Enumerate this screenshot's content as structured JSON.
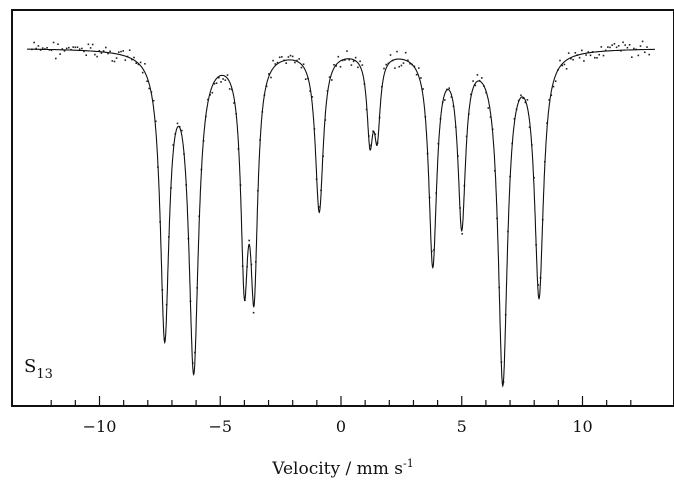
{
  "chart_data": {
    "type": "line",
    "title": "",
    "xlabel": "Velocity / mm s",
    "xlabel_superscript": "-1",
    "ylabel": "",
    "sample_label": "S",
    "sample_label_subscript": "13",
    "xlim": [
      -13,
      13
    ],
    "ylim": [
      0,
      1.0
    ],
    "grid": false,
    "x_ticks": [
      -10,
      -5,
      0,
      5,
      10
    ],
    "x_tick_labels": [
      "−10",
      "−5",
      "0",
      "5",
      "10"
    ],
    "baseline": 1.0,
    "series": [
      {
        "kind": "fit",
        "absorption_lines": [
          {
            "position": -7.3,
            "depth": 0.93,
            "width": 0.22
          },
          {
            "position": -6.1,
            "depth": 1.04,
            "width": 0.24
          },
          {
            "position": -4.0,
            "depth": 0.69,
            "width": 0.18
          },
          {
            "position": -3.6,
            "depth": 0.72,
            "width": 0.18
          },
          {
            "position": -0.9,
            "depth": 0.53,
            "width": 0.2
          },
          {
            "position": 1.2,
            "depth": 0.27,
            "width": 0.15
          },
          {
            "position": 1.5,
            "depth": 0.25,
            "width": 0.15
          },
          {
            "position": 3.8,
            "depth": 0.7,
            "width": 0.2
          },
          {
            "position": 5.0,
            "depth": 0.56,
            "width": 0.19
          },
          {
            "position": 6.7,
            "depth": 1.09,
            "width": 0.23
          },
          {
            "position": 8.2,
            "depth": 0.8,
            "width": 0.22
          }
        ]
      }
    ]
  }
}
